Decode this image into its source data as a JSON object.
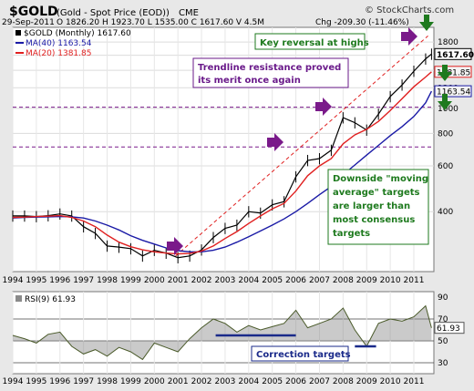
{
  "header": {
    "symbol": "$GOLD",
    "name": "(Gold - Spot Price (EOD))",
    "exchange": "CME",
    "date": "29-Sep-2011",
    "ohlc": "O 1826.20  H 1923.70  L 1535.00  C 1617.60  V 4.5M",
    "change": "Chg -209.30 (-11.46%)",
    "watermark": "© StockCharts.com"
  },
  "legend": {
    "price": "$GOLD (Monthly) 1617.60",
    "ma40": "MA(40) 1163.54",
    "ma20": "MA(20) 1381.85",
    "rsi": "RSI(9) 61.93"
  },
  "annotations": {
    "key_reversal": "Key reversal at highs",
    "trendline_1": "Trendline resistance proved",
    "trendline_2": "its merit once again",
    "downside_1": "Downside \"moving",
    "downside_2": "average\" targets",
    "downside_3": "are larger than",
    "downside_4": "most consensus",
    "downside_5": "targets",
    "correction": "Correction targets"
  },
  "colors": {
    "panel_bg": "#e8e8e8",
    "plot_bg": "#ffffff",
    "price_bar": "#000000",
    "ma40": "#1a1aa6",
    "ma20": "#e02020",
    "trendline": "#e02020",
    "support": "#7a1a8a",
    "arrow_purple": "#7a1a8a",
    "arrow_green": "#1e7a1e",
    "arrow_blue": "#1a3a9a",
    "annotation_green": "#1e7a1e",
    "annotation_purple": "#6a1a8a",
    "annotation_blue": "#1a2a8a",
    "rsi_fill": "#8a8a8a",
    "rsi_line": "#4a5a2a",
    "target_bar": "#1a2a8a"
  },
  "chart_data": [
    {
      "type": "line",
      "title": "$GOLD (Monthly)",
      "x": [
        1994.0,
        1994.5,
        1995.0,
        1995.5,
        1996.0,
        1996.5,
        1997.0,
        1997.5,
        1998.0,
        1998.5,
        1999.0,
        1999.5,
        2000.0,
        2000.5,
        2001.0,
        2001.5,
        2002.0,
        2002.5,
        2003.0,
        2003.5,
        2004.0,
        2004.5,
        2005.0,
        2005.5,
        2006.0,
        2006.5,
        2007.0,
        2007.5,
        2008.0,
        2008.5,
        2009.0,
        2009.5,
        2010.0,
        2010.5,
        2011.0,
        2011.5,
        2011.75
      ],
      "series": [
        {
          "name": "$GOLD (Monthly)",
          "values": [
            385,
            385,
            383,
            386,
            392,
            385,
            350,
            330,
            295,
            292,
            288,
            270,
            284,
            277,
            266,
            270,
            285,
            318,
            345,
            355,
            400,
            395,
            425,
            437,
            545,
            630,
            640,
            690,
            920,
            880,
            825,
            950,
            1110,
            1230,
            1390,
            1550,
            1617.6
          ]
        },
        {
          "name": "MA(40)",
          "values": [
            378,
            380,
            381,
            382,
            383,
            382,
            378,
            368,
            355,
            340,
            323,
            310,
            300,
            290,
            283,
            280,
            280,
            284,
            292,
            305,
            320,
            337,
            355,
            375,
            400,
            430,
            465,
            500,
            555,
            605,
            660,
            720,
            785,
            850,
            930,
            1050,
            1163.54
          ]
        },
        {
          "name": "MA(20)",
          "values": [
            380,
            381,
            383,
            384,
            386,
            380,
            368,
            350,
            325,
            305,
            293,
            285,
            280,
            277,
            275,
            276,
            282,
            295,
            315,
            335,
            360,
            385,
            410,
            430,
            480,
            550,
            600,
            640,
            730,
            790,
            830,
            890,
            980,
            1090,
            1210,
            1320,
            1381.85
          ]
        }
      ],
      "x_ticks": [
        "1994",
        "1995",
        "1996",
        "1997",
        "1998",
        "1999",
        "2000",
        "2001",
        "2002",
        "2003",
        "2004",
        "2005",
        "2006",
        "2007",
        "2008",
        "2009",
        "2010",
        "2011"
      ],
      "y_ticks": [
        400,
        600,
        800,
        1000,
        1200,
        1400,
        1600,
        1800
      ],
      "y_scale": "log",
      "ylim": [
        235,
        2050
      ],
      "trendline": {
        "x": [
          2000.9,
          2011.6
        ],
        "y": [
          270,
          1900
        ]
      },
      "support_levels": [
        1010,
        710
      ],
      "price_labels": [
        "1617.60",
        "1381.85",
        "1163.54"
      ]
    },
    {
      "type": "area",
      "title": "RSI(9)",
      "x": [
        1994.0,
        1994.5,
        1995.0,
        1995.5,
        1996.0,
        1996.5,
        1997.0,
        1997.5,
        1998.0,
        1998.5,
        1999.0,
        1999.5,
        2000.0,
        2000.5,
        2001.0,
        2001.5,
        2002.0,
        2002.5,
        2003.0,
        2003.5,
        2004.0,
        2004.5,
        2005.0,
        2005.5,
        2006.0,
        2006.5,
        2007.0,
        2007.5,
        2008.0,
        2008.5,
        2009.0,
        2009.5,
        2010.0,
        2010.5,
        2011.0,
        2011.5,
        2011.75
      ],
      "values": [
        55,
        52,
        48,
        56,
        58,
        45,
        38,
        42,
        36,
        44,
        40,
        33,
        48,
        44,
        40,
        52,
        62,
        70,
        66,
        58,
        64,
        60,
        63,
        66,
        78,
        62,
        66,
        70,
        80,
        60,
        45,
        66,
        70,
        68,
        72,
        82,
        61.93
      ],
      "y_ticks": [
        30,
        50,
        70,
        90
      ],
      "ylim": [
        20,
        95
      ],
      "reference_lines": [
        70,
        50,
        30
      ],
      "targets": [
        {
          "x": [
            2002.6,
            2006.0
          ],
          "y": 55
        },
        {
          "x": [
            2008.5,
            2009.4
          ],
          "y": 45
        }
      ],
      "price_label": "61.93"
    }
  ]
}
